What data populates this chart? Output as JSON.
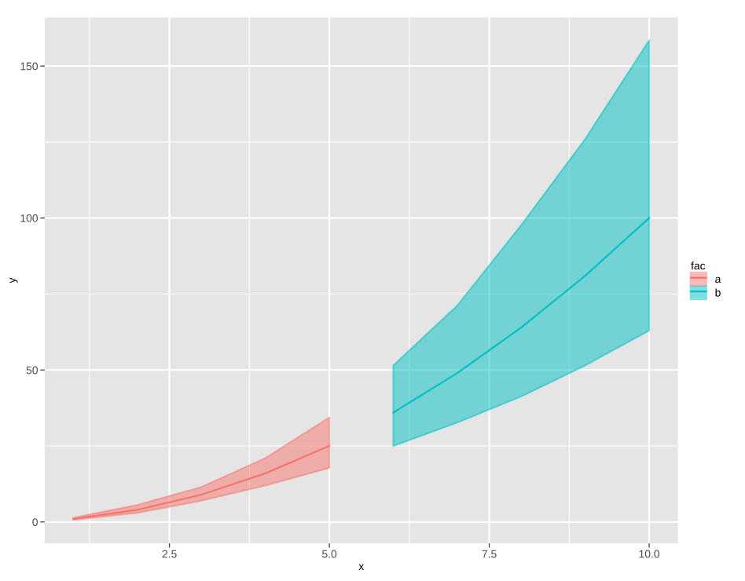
{
  "chart_data": {
    "type": "line",
    "xlabel": "x",
    "ylabel": "y",
    "legend_title": "fac",
    "legend": "right",
    "grid": true,
    "xlim": [
      0.55,
      10.45
    ],
    "ylim": [
      -7,
      166
    ],
    "xticks": [
      {
        "value": 2.5,
        "label": "2.5"
      },
      {
        "value": 5,
        "label": "5.0"
      },
      {
        "value": 7.5,
        "label": "7.5"
      },
      {
        "value": 10,
        "label": "10.0"
      }
    ],
    "yticks": [
      0,
      50,
      100,
      150
    ],
    "series": [
      {
        "name": "a",
        "color": "#f8766d",
        "x": [
          1,
          2,
          3,
          4,
          5
        ],
        "values": [
          1,
          4,
          9,
          16,
          25
        ],
        "lower": [
          0.7,
          3,
          7,
          12,
          17.8
        ],
        "upper": [
          1.4,
          5.6,
          11.5,
          21,
          34.4
        ]
      },
      {
        "name": "b",
        "color": "#00bfc4",
        "x": [
          6,
          7,
          8,
          9,
          10
        ],
        "values": [
          36,
          49,
          64,
          81,
          100
        ],
        "lower": [
          25,
          32.7,
          41.3,
          51.5,
          63
        ],
        "upper": [
          51.5,
          71.2,
          97.7,
          126,
          158.5
        ]
      }
    ]
  }
}
